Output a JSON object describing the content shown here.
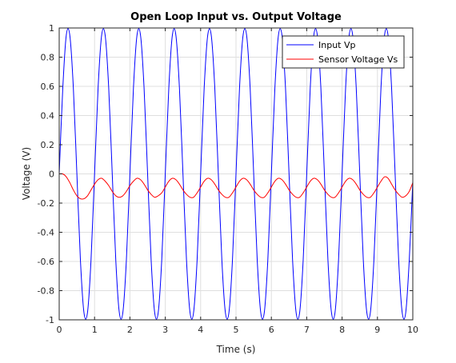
{
  "chart_data": {
    "type": "line",
    "title": "Open Loop Input vs. Output Voltage",
    "xlabel": "Time (s)",
    "ylabel": "Voltage (V)",
    "xlim": [
      0,
      10
    ],
    "ylim": [
      -1,
      1
    ],
    "grid": true,
    "legend_position": "top-right",
    "xticks": [
      "0",
      "1",
      "2",
      "3",
      "4",
      "5",
      "6",
      "7",
      "8",
      "9",
      "10"
    ],
    "yticks": [
      "-1",
      "-0.8",
      "-0.6",
      "-0.4",
      "-0.2",
      "0",
      "0.2",
      "0.4",
      "0.6",
      "0.8",
      "1"
    ],
    "x": [
      0,
      0.1,
      0.2,
      0.3,
      0.4,
      0.5,
      0.6,
      0.7,
      0.8,
      0.9,
      1.0,
      1.1,
      1.2,
      1.3,
      1.4,
      1.5,
      1.6,
      1.7,
      1.8,
      1.9,
      2.0,
      2.1,
      2.2,
      2.3,
      2.4,
      2.5,
      2.6,
      2.7,
      2.8,
      2.9,
      3.0,
      3.1,
      3.2,
      3.3,
      3.4,
      3.5,
      3.6,
      3.7,
      3.8,
      3.9,
      4.0,
      4.1,
      4.2,
      4.3,
      4.4,
      4.5,
      4.6,
      4.7,
      4.8,
      4.9,
      5.0,
      5.1,
      5.2,
      5.3,
      5.4,
      5.5,
      5.6,
      5.7,
      5.8,
      5.9,
      6.0,
      6.1,
      6.2,
      6.3,
      6.4,
      6.5,
      6.6,
      6.7,
      6.8,
      6.9,
      7.0,
      7.1,
      7.2,
      7.3,
      7.4,
      7.5,
      7.6,
      7.7,
      7.8,
      7.9,
      8.0,
      8.1,
      8.2,
      8.3,
      8.4,
      8.5,
      8.6,
      8.7,
      8.8,
      8.9,
      9.0,
      9.1,
      9.2,
      9.3,
      9.4,
      9.5,
      9.6,
      9.7,
      9.8,
      9.9,
      10.0
    ],
    "series": [
      {
        "name": "Input Vp",
        "color": "#0000ff",
        "values": [
          0.0,
          0.58,
          0.95,
          0.95,
          0.59,
          0.0,
          -0.59,
          -0.95,
          -0.95,
          -0.59,
          0.0,
          0.59,
          0.95,
          0.95,
          0.59,
          0.0,
          -0.59,
          -0.95,
          -0.95,
          -0.59,
          0.0,
          0.59,
          0.95,
          0.95,
          0.59,
          0.0,
          -0.59,
          -0.95,
          -0.95,
          -0.59,
          0.0,
          0.59,
          0.95,
          0.95,
          0.59,
          0.0,
          -0.59,
          -0.95,
          -0.95,
          -0.59,
          0.0,
          0.59,
          0.95,
          0.95,
          0.59,
          0.0,
          -0.59,
          -0.95,
          -0.95,
          -0.59,
          0.0,
          0.59,
          0.95,
          0.95,
          0.59,
          0.0,
          -0.59,
          -0.95,
          -0.95,
          -0.59,
          0.0,
          0.59,
          0.95,
          0.95,
          0.59,
          0.0,
          -0.59,
          -0.95,
          -0.95,
          -0.59,
          0.0,
          0.59,
          0.95,
          0.95,
          0.59,
          0.0,
          -0.59,
          -0.95,
          -0.95,
          -0.59,
          0.0,
          0.59,
          0.95,
          0.95,
          0.59,
          0.0,
          -0.59,
          -0.95,
          -0.95,
          -0.59,
          0.0,
          0.59,
          0.95,
          0.95,
          0.59,
          0.0,
          -0.59,
          -0.95,
          -0.95,
          -0.59,
          -0.05
        ]
      },
      {
        "name": "Sensor Voltage Vs",
        "color": "#ff0000",
        "values": [
          0.0,
          0.0,
          -0.02,
          -0.06,
          -0.11,
          -0.15,
          -0.17,
          -0.17,
          -0.15,
          -0.11,
          -0.07,
          -0.04,
          -0.03,
          -0.05,
          -0.08,
          -0.12,
          -0.15,
          -0.16,
          -0.15,
          -0.12,
          -0.08,
          -0.05,
          -0.03,
          -0.04,
          -0.07,
          -0.11,
          -0.14,
          -0.16,
          -0.15,
          -0.13,
          -0.09,
          -0.05,
          -0.03,
          -0.04,
          -0.07,
          -0.11,
          -0.14,
          -0.16,
          -0.16,
          -0.13,
          -0.09,
          -0.05,
          -0.03,
          -0.04,
          -0.07,
          -0.11,
          -0.14,
          -0.16,
          -0.16,
          -0.13,
          -0.09,
          -0.05,
          -0.03,
          -0.04,
          -0.07,
          -0.11,
          -0.14,
          -0.16,
          -0.16,
          -0.13,
          -0.09,
          -0.05,
          -0.03,
          -0.04,
          -0.07,
          -0.11,
          -0.14,
          -0.16,
          -0.16,
          -0.13,
          -0.09,
          -0.05,
          -0.03,
          -0.04,
          -0.07,
          -0.11,
          -0.14,
          -0.16,
          -0.16,
          -0.13,
          -0.09,
          -0.05,
          -0.03,
          -0.04,
          -0.07,
          -0.11,
          -0.14,
          -0.16,
          -0.16,
          -0.13,
          -0.09,
          -0.05,
          -0.02,
          -0.03,
          -0.07,
          -0.11,
          -0.14,
          -0.16,
          -0.15,
          -0.12,
          -0.06
        ]
      }
    ]
  }
}
